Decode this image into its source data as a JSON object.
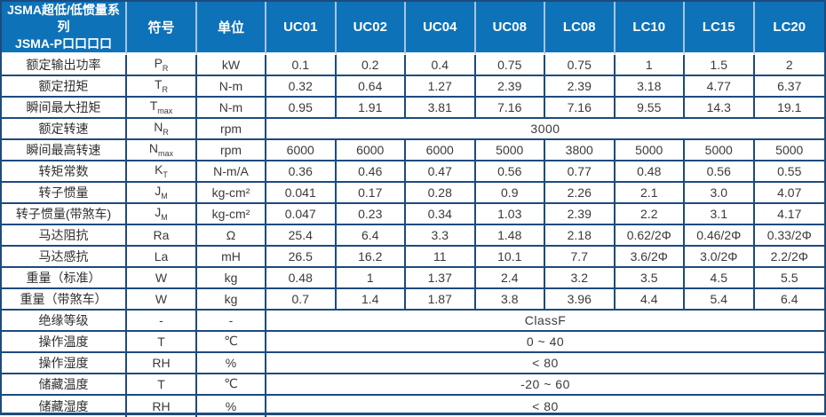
{
  "table": {
    "header": {
      "title_line1": "JSMA超低/低惯量系列",
      "title_line2": "JSMA-P口口口口",
      "symbol_col": "符号",
      "unit_col": "单位",
      "models": [
        "UC01",
        "UC02",
        "UC04",
        "UC08",
        "LC08",
        "LC10",
        "LC15",
        "LC20"
      ]
    },
    "rows": [
      {
        "label": "额定输出功率",
        "symbol": "P",
        "sub": "R",
        "unit": "kW",
        "values": [
          "0.1",
          "0.2",
          "0.4",
          "0.75",
          "0.75",
          "1",
          "1.5",
          "2"
        ]
      },
      {
        "label": "额定扭矩",
        "symbol": "T",
        "sub": "R",
        "unit": "N-m",
        "values": [
          "0.32",
          "0.64",
          "1.27",
          "2.39",
          "2.39",
          "3.18",
          "4.77",
          "6.37"
        ]
      },
      {
        "label": "瞬间最大扭矩",
        "symbol": "T",
        "sub": "max",
        "unit": "N-m",
        "values": [
          "0.95",
          "1.91",
          "3.81",
          "7.16",
          "7.16",
          "9.55",
          "14.3",
          "19.1"
        ]
      },
      {
        "label": "额定转速",
        "symbol": "N",
        "sub": "R",
        "unit": "rpm",
        "merged": "3000"
      },
      {
        "label": "瞬间最高转速",
        "symbol": "N",
        "sub": "max",
        "unit": "rpm",
        "values": [
          "6000",
          "6000",
          "6000",
          "5000",
          "3800",
          "5000",
          "5000",
          "5000"
        ]
      },
      {
        "label": "转矩常数",
        "symbol": "K",
        "sub": "T",
        "unit": "N-m/A",
        "values": [
          "0.36",
          "0.46",
          "0.47",
          "0.56",
          "0.77",
          "0.48",
          "0.56",
          "0.55"
        ]
      },
      {
        "label": "转子惯量",
        "symbol": "J",
        "sub": "M",
        "unit": "kg-cm²",
        "values": [
          "0.041",
          "0.17",
          "0.28",
          "0.9",
          "2.26",
          "2.1",
          "3.0",
          "4.07"
        ]
      },
      {
        "label": "转子惯量(带煞车)",
        "symbol": "J",
        "sub": "M",
        "unit": "kg-cm²",
        "values": [
          "0.047",
          "0.23",
          "0.34",
          "1.03",
          "2.39",
          "2.2",
          "3.1",
          "4.17"
        ]
      },
      {
        "label": "马达阻抗",
        "symbol": "Ra",
        "sub": "",
        "unit": "Ω",
        "values": [
          "25.4",
          "6.4",
          "3.3",
          "1.48",
          "2.18",
          "0.62/2Φ",
          "0.46/2Φ",
          "0.33/2Φ"
        ]
      },
      {
        "label": "马达感抗",
        "symbol": "La",
        "sub": "",
        "unit": "mH",
        "values": [
          "26.5",
          "16.2",
          "11",
          "10.1",
          "7.7",
          "3.6/2Φ",
          "3.0/2Φ",
          "2.2/2Φ"
        ]
      },
      {
        "label": "重量（标准）",
        "symbol": "W",
        "sub": "",
        "unit": "kg",
        "values": [
          "0.48",
          "1",
          "1.37",
          "2.4",
          "3.2",
          "3.5",
          "4.5",
          "5.5"
        ]
      },
      {
        "label": "重量（带煞车）",
        "symbol": "W",
        "sub": "",
        "unit": "kg",
        "values": [
          "0.7",
          "1.4",
          "1.87",
          "3.8",
          "3.96",
          "4.4",
          "5.4",
          "6.4"
        ]
      },
      {
        "label": "绝缘等级",
        "symbol": "-",
        "sub": "",
        "unit": "-",
        "merged": "ClassF"
      },
      {
        "label": "操作温度",
        "symbol": "T",
        "sub": "",
        "unit": "℃",
        "merged": "0 ~ 40"
      },
      {
        "label": "操作湿度",
        "symbol": "RH",
        "sub": "",
        "unit": "%",
        "merged": "< 80"
      },
      {
        "label": "储藏温度",
        "symbol": "T",
        "sub": "",
        "unit": "℃",
        "merged": "-20 ~ 60"
      },
      {
        "label": "储藏湿度",
        "symbol": "RH",
        "sub": "",
        "unit": "%",
        "merged": "< 80"
      }
    ],
    "colors": {
      "header_bg": "#0e72b9",
      "border_dark": "#1c4b7d",
      "header_divider": "#a9c3dd",
      "text_dark": "#3a3a3a",
      "header_text": "#ffffff"
    }
  }
}
